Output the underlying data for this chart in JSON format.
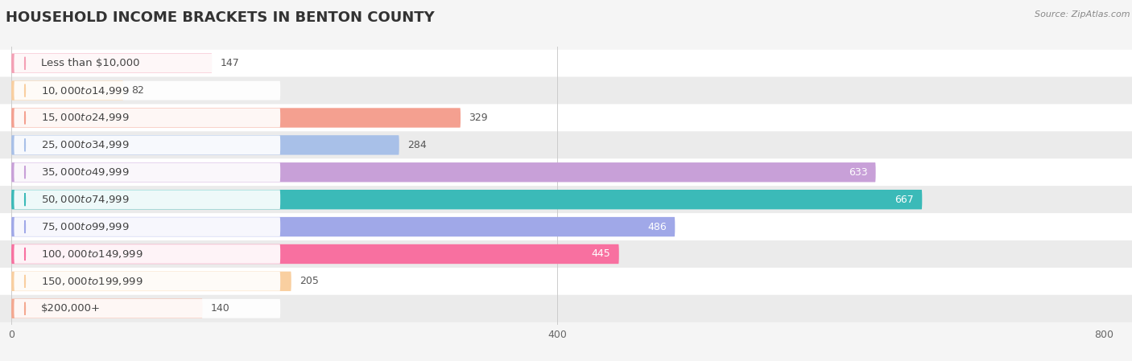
{
  "title": "HOUSEHOLD INCOME BRACKETS IN BENTON COUNTY",
  "source": "Source: ZipAtlas.com",
  "categories": [
    "Less than $10,000",
    "$10,000 to $14,999",
    "$15,000 to $24,999",
    "$25,000 to $34,999",
    "$35,000 to $49,999",
    "$50,000 to $74,999",
    "$75,000 to $99,999",
    "$100,000 to $149,999",
    "$150,000 to $199,999",
    "$200,000+"
  ],
  "values": [
    147,
    82,
    329,
    284,
    633,
    667,
    486,
    445,
    205,
    140
  ],
  "bar_colors": [
    "#F4A0B5",
    "#F9CFA0",
    "#F4A090",
    "#A8C0E8",
    "#C8A0D8",
    "#3BBAB8",
    "#A0A8E8",
    "#F870A0",
    "#F9CFA0",
    "#F4A890"
  ],
  "xlim": [
    0,
    800
  ],
  "xticks": [
    0,
    400,
    800
  ],
  "bar_height": 0.72,
  "background_color": "#f5f5f5",
  "title_fontsize": 13,
  "label_fontsize": 9.5,
  "value_fontsize": 9,
  "axis_fontsize": 9,
  "row_colors": [
    "#ffffff",
    "#ebebeb"
  ]
}
